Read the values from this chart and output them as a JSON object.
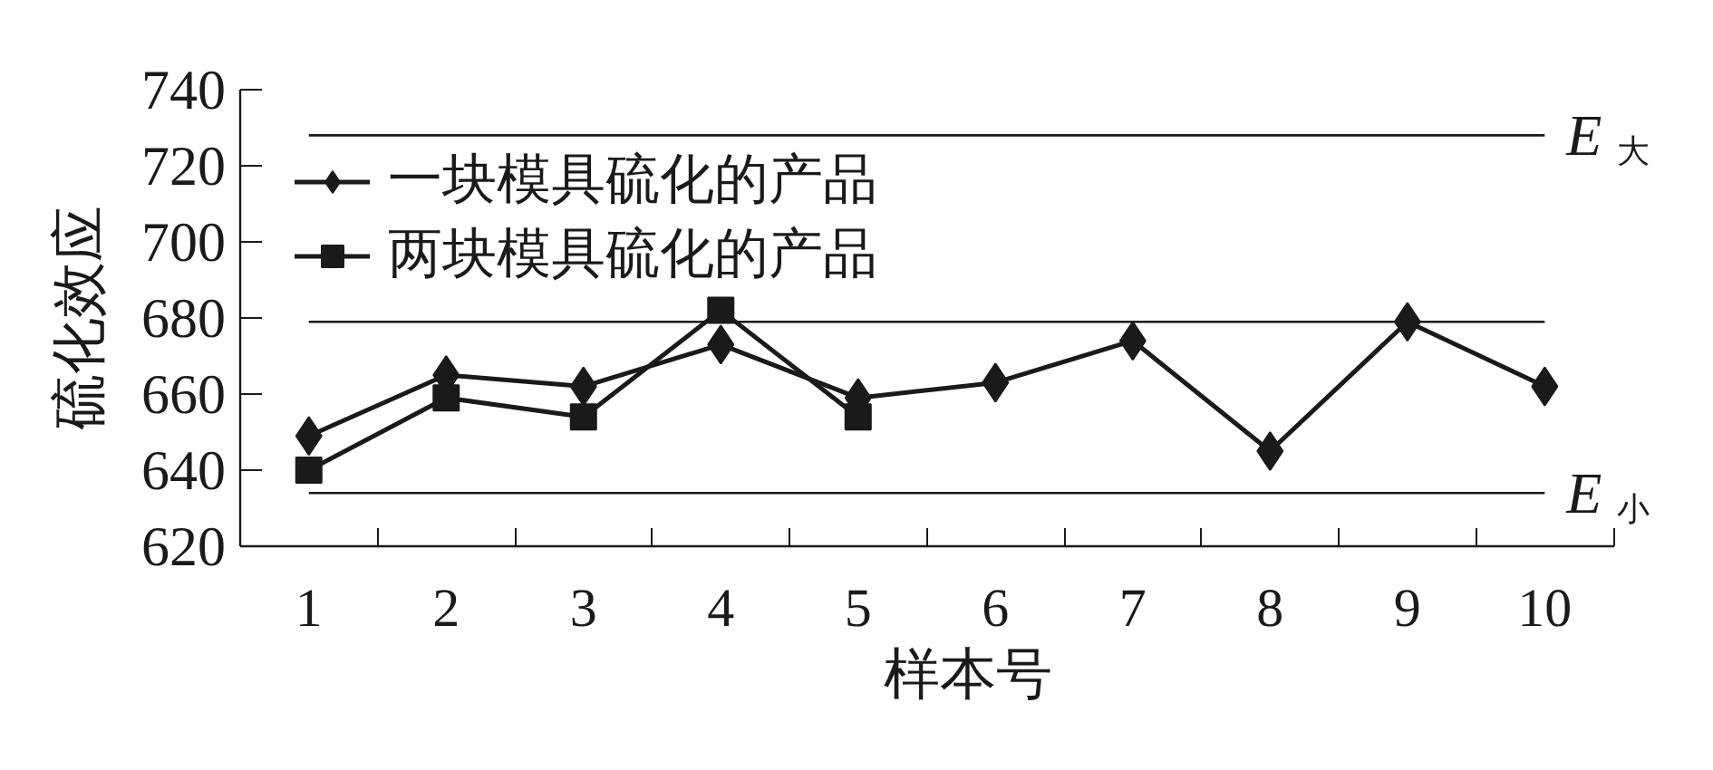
{
  "chart_data": {
    "type": "line",
    "xlabel": "样本号",
    "ylabel": "硫化效应",
    "categories": [
      "1",
      "2",
      "3",
      "4",
      "5",
      "6",
      "7",
      "8",
      "9",
      "10"
    ],
    "series": [
      {
        "name": "一块模具硫化的产品",
        "color": "#1a1a1a",
        "marker": "diamond",
        "values": [
          649,
          665,
          662,
          673,
          659,
          663,
          674,
          645,
          679,
          662
        ]
      },
      {
        "name": "两块模具硫化的产品",
        "color": "#1a1a1a",
        "marker": "square",
        "values": [
          640,
          659,
          654,
          682,
          654,
          null,
          null,
          null,
          null,
          null
        ]
      }
    ],
    "ylim": [
      620,
      740
    ],
    "yticks": [
      620,
      640,
      660,
      680,
      700,
      720,
      740
    ],
    "ref_lines": [
      {
        "axis": "y",
        "value": 728,
        "label": "E$_{大}$",
        "color": "#1a1a1a"
      },
      {
        "axis": "y",
        "value": 679,
        "color": "#1a1a1a"
      },
      {
        "axis": "y",
        "value": 634,
        "label": "E$_{小}$",
        "color": "#1a1a1a"
      }
    ],
    "legend": "top left",
    "grid": false
  }
}
